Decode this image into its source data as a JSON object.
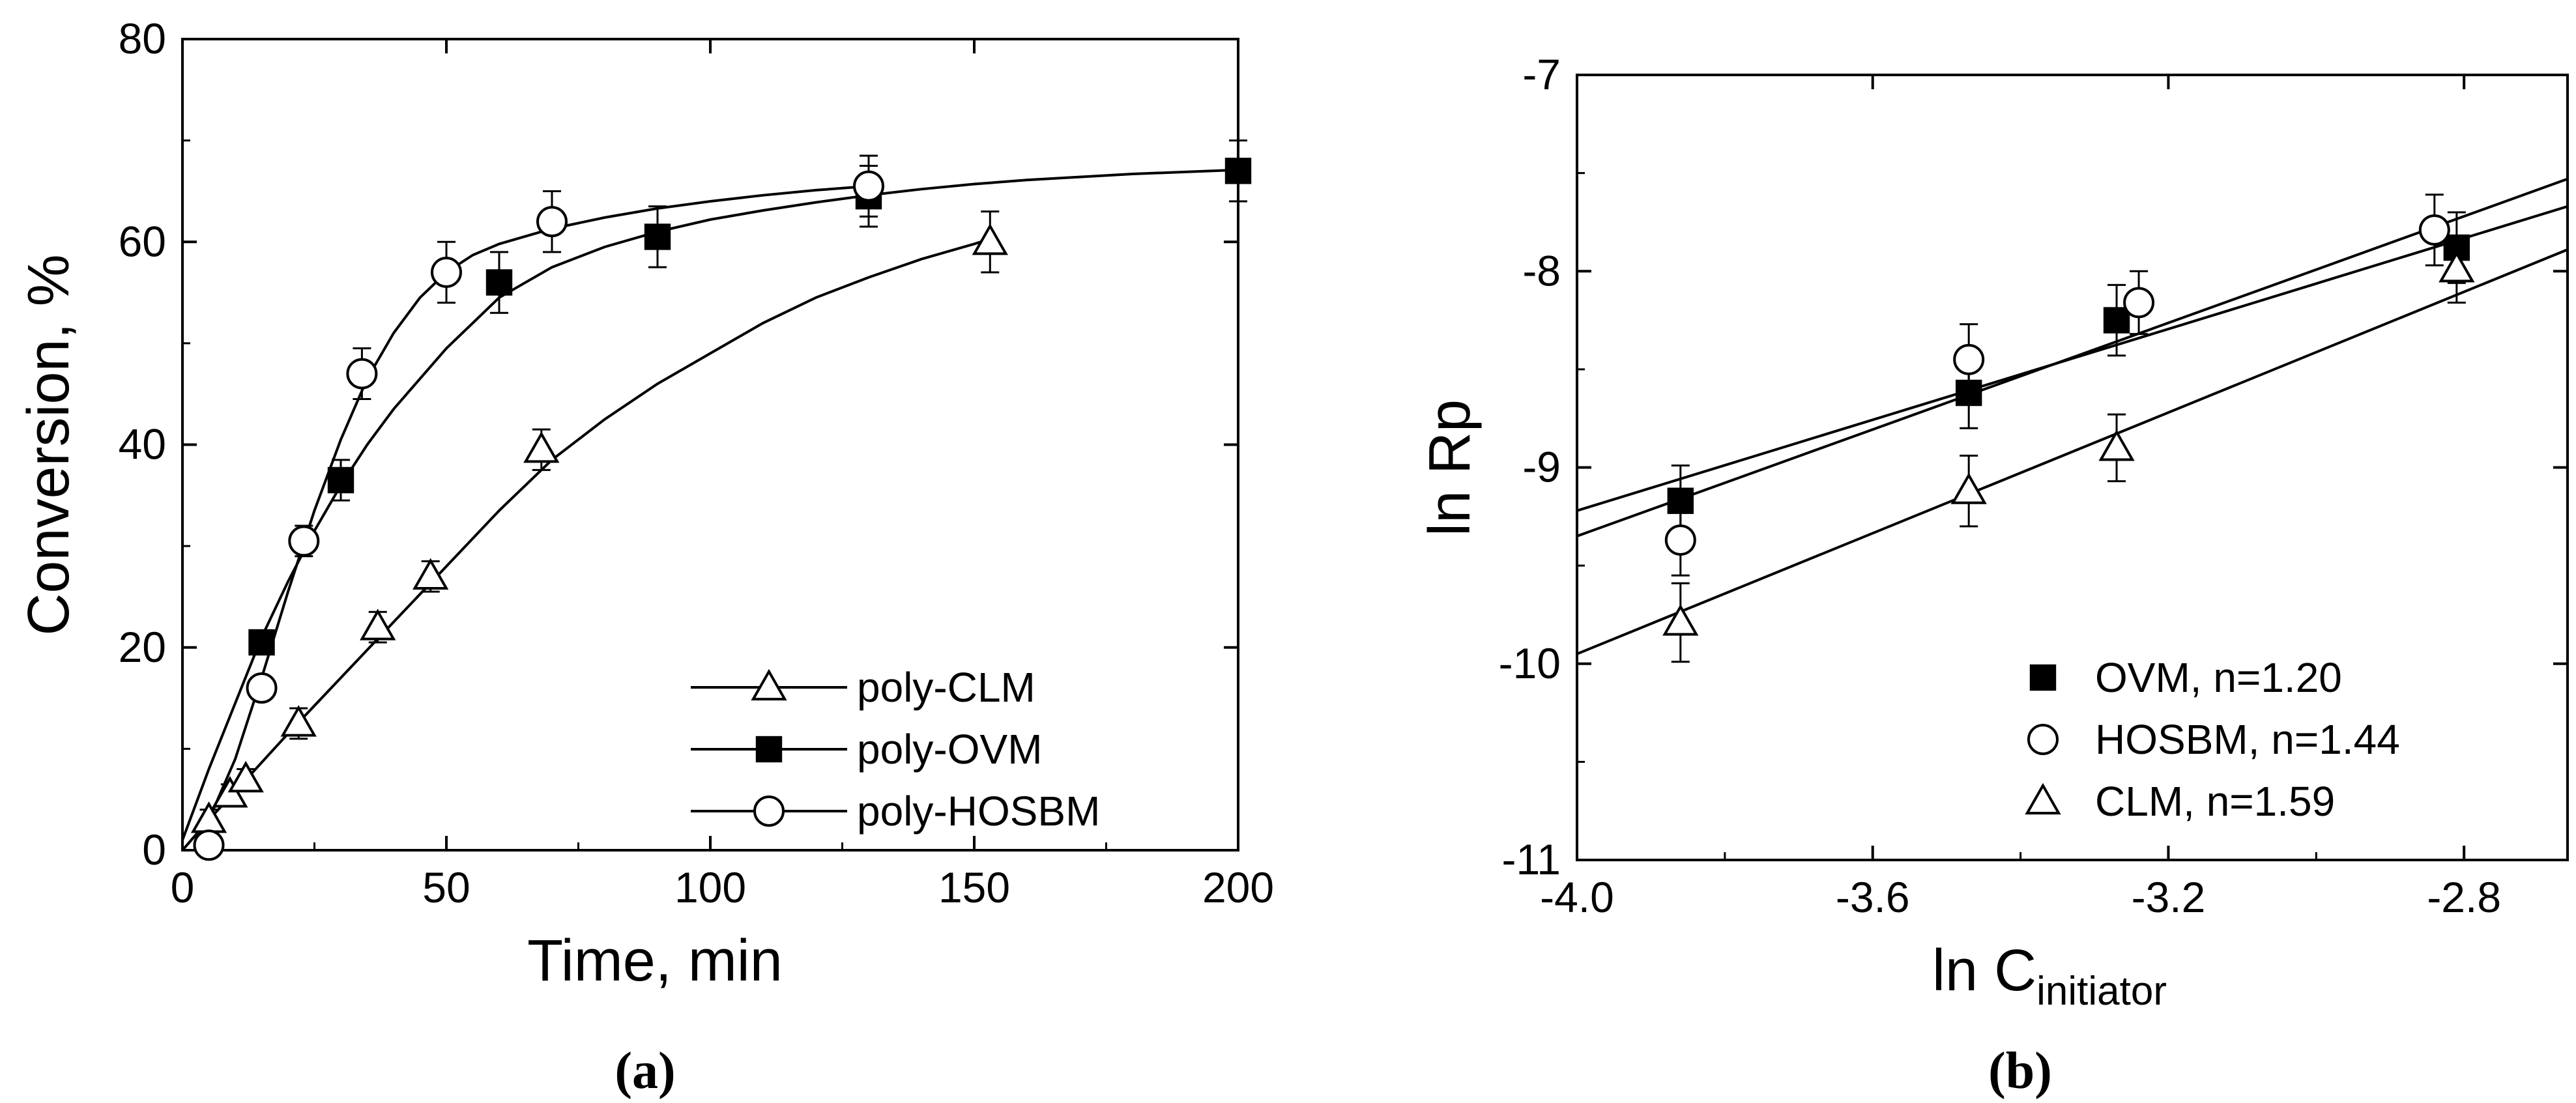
{
  "chart_data": [
    {
      "type": "scatter",
      "panel_label": "(a)",
      "xlabel": "Time, min",
      "ylabel": "Conversion, %",
      "xlim": [
        0,
        200
      ],
      "ylim": [
        0,
        80
      ],
      "xticks": [
        0,
        50,
        100,
        150,
        200
      ],
      "yticks": [
        0,
        20,
        40,
        60,
        80
      ],
      "grid": false,
      "legend_position": "bottom-right",
      "series": [
        {
          "name": "poly-CLM",
          "marker": "open-triangle",
          "x": [
            5,
            9,
            12,
            22,
            37,
            47,
            68,
            153
          ],
          "y": [
            3,
            5.5,
            7,
            12.5,
            22,
            27,
            39.5,
            60
          ],
          "err": [
            1,
            1,
            1,
            1.5,
            1.5,
            1.5,
            2,
            3
          ],
          "fit_x": [
            0,
            5,
            10,
            20,
            30,
            40,
            50,
            60,
            70,
            80,
            90,
            100,
            110,
            120,
            130,
            140,
            150,
            153
          ],
          "fit_y": [
            0,
            3,
            5.8,
            11.5,
            17,
            22.5,
            28,
            33.5,
            38.5,
            42.5,
            46,
            49,
            52,
            54.5,
            56.5,
            58.3,
            59.8,
            60.3
          ]
        },
        {
          "name": "poly-OVM",
          "marker": "filled-square",
          "x": [
            15,
            30,
            60,
            90,
            130,
            200
          ],
          "y": [
            20.5,
            36.5,
            56,
            60.5,
            64.5,
            67
          ],
          "err": [
            1,
            2,
            3,
            3,
            3,
            3
          ],
          "fit_x": [
            0,
            5,
            10,
            15,
            20,
            25,
            30,
            35,
            40,
            45,
            50,
            55,
            60,
            70,
            80,
            90,
            100,
            110,
            120,
            130,
            140,
            150,
            160,
            170,
            180,
            190,
            200
          ],
          "fit_y": [
            1,
            8,
            14.5,
            21,
            26.5,
            31.5,
            36,
            40,
            43.5,
            46.5,
            49.5,
            52,
            54.5,
            57.5,
            59.5,
            61,
            62.2,
            63.1,
            63.9,
            64.6,
            65.2,
            65.7,
            66.1,
            66.4,
            66.7,
            66.9,
            67.1
          ]
        },
        {
          "name": "poly-HOSBM",
          "marker": "open-circle",
          "x": [
            5,
            15,
            23,
            34,
            50,
            70,
            130
          ],
          "y": [
            0.5,
            16,
            30.5,
            47,
            57,
            62,
            65.5
          ],
          "err": [
            0.5,
            1,
            1.5,
            2.5,
            3,
            3,
            3
          ],
          "fit_x": [
            0,
            5,
            10,
            15,
            20,
            25,
            30,
            35,
            40,
            45,
            50,
            55,
            60,
            70,
            80,
            90,
            100,
            110,
            120,
            130
          ],
          "fit_y": [
            0,
            3,
            9,
            17,
            25.5,
            33.5,
            40.5,
            46.5,
            51,
            54.5,
            57,
            58.7,
            59.8,
            61.3,
            62.4,
            63.3,
            64,
            64.6,
            65.1,
            65.5
          ]
        }
      ]
    },
    {
      "type": "scatter",
      "panel_label": "(b)",
      "xlabel_main": "ln C",
      "xlabel_sub": "initiator",
      "ylabel": "ln Rp",
      "xlim": [
        -4.0,
        -2.66
      ],
      "ylim": [
        -11,
        -7
      ],
      "xticks": [
        "-4.0",
        "-3.6",
        "-3.2",
        "-2.8"
      ],
      "xtick_values": [
        -4.0,
        -3.6,
        -3.2,
        -2.8
      ],
      "yticks": [
        "-11",
        "-10",
        "-9",
        "-8",
        "-7"
      ],
      "ytick_values": [
        -11,
        -10,
        -9,
        -8,
        -7
      ],
      "grid": false,
      "legend_position": "bottom-right",
      "series": [
        {
          "name": "OVM, n=1.20",
          "marker": "filled-square",
          "x": [
            -3.86,
            -3.47,
            -3.27,
            -2.81
          ],
          "y": [
            -9.17,
            -8.62,
            -8.25,
            -7.88
          ],
          "err": [
            0.18,
            0.18,
            0.18,
            0.18
          ],
          "fit_x": [
            -4.0,
            -2.66
          ],
          "fit_y": [
            -9.22,
            -7.67
          ]
        },
        {
          "name": "HOSBM, n=1.44",
          "marker": "open-circle",
          "x": [
            -3.86,
            -3.47,
            -3.24,
            -2.84
          ],
          "y": [
            -9.37,
            -8.45,
            -8.16,
            -7.79
          ],
          "err": [
            0.18,
            0.18,
            0.16,
            0.18
          ],
          "fit_x": [
            -4.0,
            -2.66
          ],
          "fit_y": [
            -9.35,
            -7.53
          ]
        },
        {
          "name": "CLM, n=1.59",
          "marker": "open-triangle",
          "x": [
            -3.86,
            -3.47,
            -3.27,
            -2.81
          ],
          "y": [
            -9.79,
            -9.12,
            -8.9,
            -7.99
          ],
          "err": [
            0.2,
            0.18,
            0.17,
            0.17
          ],
          "fit_x": [
            -4.0,
            -2.66
          ],
          "fit_y": [
            -9.95,
            -7.89
          ]
        }
      ]
    }
  ]
}
